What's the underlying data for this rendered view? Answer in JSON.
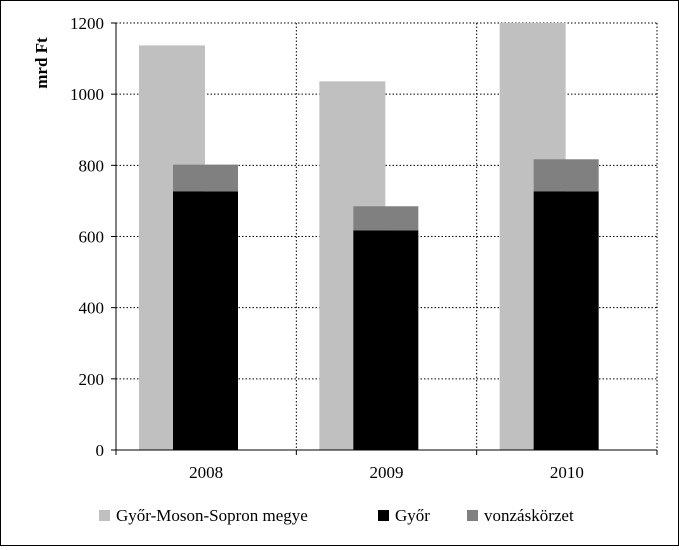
{
  "chart_data": {
    "type": "bar",
    "ylabel": "mrd Ft",
    "categories": [
      "2008",
      "2009",
      "2010"
    ],
    "ylim": [
      0,
      1200
    ],
    "yticks": [
      0,
      200,
      400,
      600,
      800,
      1000,
      1200
    ],
    "ytick_labels": [
      "0",
      "200",
      "400",
      "600",
      "800",
      "1000",
      "1200"
    ],
    "grid": "dotted",
    "legend_position": "bottom",
    "series": [
      {
        "name": "Győr-Moson-Sopron megye",
        "values": [
          1137,
          1036,
          1200
        ],
        "color": "#c0c0c0",
        "stack": "county"
      },
      {
        "name": "Győr",
        "values": [
          727,
          617,
          727
        ],
        "color": "#000000",
        "stack": "city"
      },
      {
        "name": "vonzáskörzet",
        "values": [
          75,
          68,
          90
        ],
        "color": "#808080",
        "stack": "city"
      }
    ]
  }
}
